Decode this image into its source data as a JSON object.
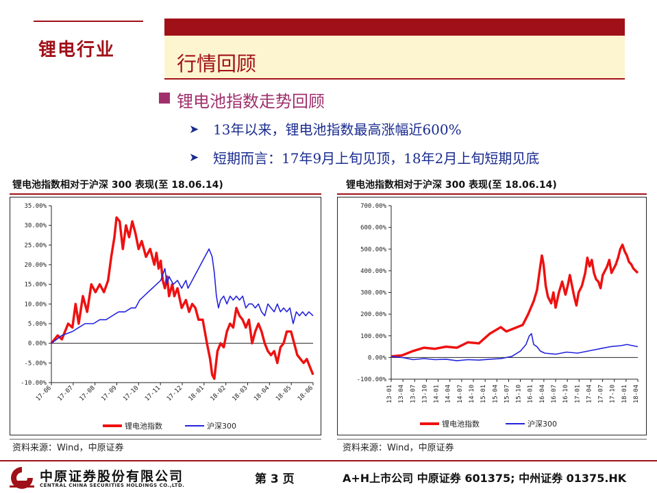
{
  "header": {
    "sector_label": "锂电行业",
    "section_title": "行情回顾"
  },
  "content": {
    "heading": "锂电池指数走势回顾",
    "points": [
      "13年以来，锂电池指数最高涨幅近600%",
      "短期而言：17年9月上旬见顶，18年2月上旬短期见底"
    ]
  },
  "charts": [
    {
      "title": "锂电池指数相对于沪深 300 表现(至 18.06.14)",
      "source": "资料来源：Wind，中原证券"
    },
    {
      "title": "锂电池指数相对于沪深 300 表现(至 18.06.14)",
      "source": "资料来源：Wind，中原证券"
    }
  ],
  "chart_data": [
    {
      "type": "line",
      "title": "锂电池指数相对于沪深 300 表现(至 18.06.14)",
      "colors": {
        "锂电池指数": "#ee1111",
        "沪深300": "#2222dd"
      },
      "y_ticks": [
        "35.00%",
        "30.00%",
        "25.00%",
        "20.00%",
        "15.00%",
        "10.00%",
        "5.00%",
        "0.00%",
        "-5.00%",
        "-10.00%"
      ],
      "ylim": [
        -10,
        35
      ],
      "x_ticks": [
        "17-06",
        "17-07",
        "17-08",
        "17-09",
        "17-10",
        "17-11",
        "17-12",
        "18-01",
        "18-02",
        "18-03",
        "18-04",
        "18-05",
        "18-06"
      ],
      "x_range": [
        0,
        12.45
      ],
      "legend_position": "bottom",
      "series": [
        {
          "name": "锂电池指数",
          "points": [
            [
              0,
              0
            ],
            [
              0.3,
              2
            ],
            [
              0.5,
              1
            ],
            [
              0.8,
              5
            ],
            [
              1.0,
              4
            ],
            [
              1.15,
              10
            ],
            [
              1.3,
              5
            ],
            [
              1.5,
              12
            ],
            [
              1.7,
              8
            ],
            [
              1.9,
              15
            ],
            [
              2.1,
              13
            ],
            [
              2.3,
              15
            ],
            [
              2.5,
              13
            ],
            [
              2.7,
              16
            ],
            [
              2.85,
              22
            ],
            [
              3.0,
              27
            ],
            [
              3.1,
              32
            ],
            [
              3.25,
              31
            ],
            [
              3.4,
              24
            ],
            [
              3.55,
              30
            ],
            [
              3.7,
              27
            ],
            [
              3.85,
              31
            ],
            [
              4.0,
              28
            ],
            [
              4.15,
              24
            ],
            [
              4.3,
              26
            ],
            [
              4.5,
              22
            ],
            [
              4.7,
              24
            ],
            [
              4.9,
              20
            ],
            [
              5.0,
              23
            ],
            [
              5.1,
              19
            ],
            [
              5.2,
              21
            ],
            [
              5.3,
              16
            ],
            [
              5.4,
              14
            ],
            [
              5.5,
              17
            ],
            [
              5.6,
              12
            ],
            [
              5.75,
              15
            ],
            [
              5.85,
              12
            ],
            [
              6.0,
              14
            ],
            [
              6.2,
              9
            ],
            [
              6.4,
              11
            ],
            [
              6.55,
              8
            ],
            [
              6.7,
              10
            ],
            [
              6.85,
              9
            ],
            [
              7.0,
              6
            ],
            [
              7.2,
              6
            ],
            [
              7.4,
              0
            ],
            [
              7.55,
              -4
            ],
            [
              7.65,
              -8
            ],
            [
              7.75,
              -9
            ],
            [
              7.9,
              -2
            ],
            [
              8.05,
              0
            ],
            [
              8.2,
              -1
            ],
            [
              8.35,
              3
            ],
            [
              8.5,
              5
            ],
            [
              8.65,
              4
            ],
            [
              8.8,
              9
            ],
            [
              8.95,
              7
            ],
            [
              9.1,
              6
            ],
            [
              9.25,
              4
            ],
            [
              9.4,
              6
            ],
            [
              9.55,
              0
            ],
            [
              9.7,
              3
            ],
            [
              9.85,
              5
            ],
            [
              10.0,
              3
            ],
            [
              10.15,
              0
            ],
            [
              10.3,
              -2
            ],
            [
              10.45,
              -3
            ],
            [
              10.6,
              -2
            ],
            [
              10.75,
              -5
            ],
            [
              10.9,
              -1
            ],
            [
              11.05,
              0
            ],
            [
              11.2,
              3
            ],
            [
              11.4,
              3
            ],
            [
              11.55,
              0
            ],
            [
              11.7,
              -3
            ],
            [
              11.85,
              -4
            ],
            [
              12.0,
              -5
            ],
            [
              12.15,
              -4
            ],
            [
              12.3,
              -6
            ],
            [
              12.45,
              -8
            ]
          ]
        },
        {
          "name": "沪深300",
          "points": [
            [
              0,
              0
            ],
            [
              0.5,
              2
            ],
            [
              1.0,
              3
            ],
            [
              1.3,
              4
            ],
            [
              1.6,
              5
            ],
            [
              2.0,
              5
            ],
            [
              2.3,
              6
            ],
            [
              2.6,
              6
            ],
            [
              2.9,
              7
            ],
            [
              3.2,
              8
            ],
            [
              3.5,
              8
            ],
            [
              3.8,
              9
            ],
            [
              4.0,
              9
            ],
            [
              4.2,
              11
            ],
            [
              4.4,
              12
            ],
            [
              4.6,
              13
            ],
            [
              4.8,
              14
            ],
            [
              5.0,
              15
            ],
            [
              5.2,
              16
            ],
            [
              5.4,
              19
            ],
            [
              5.5,
              15
            ],
            [
              5.6,
              17
            ],
            [
              5.8,
              15
            ],
            [
              6.0,
              16
            ],
            [
              6.2,
              14
            ],
            [
              6.4,
              16
            ],
            [
              6.5,
              14
            ],
            [
              6.6,
              15
            ],
            [
              6.8,
              17
            ],
            [
              7.0,
              19
            ],
            [
              7.2,
              21
            ],
            [
              7.4,
              23
            ],
            [
              7.5,
              24
            ],
            [
              7.65,
              22
            ],
            [
              7.75,
              18
            ],
            [
              7.85,
              12
            ],
            [
              7.95,
              9
            ],
            [
              8.05,
              11
            ],
            [
              8.2,
              12
            ],
            [
              8.35,
              10
            ],
            [
              8.5,
              12
            ],
            [
              8.65,
              11
            ],
            [
              8.8,
              12
            ],
            [
              8.95,
              11
            ],
            [
              9.1,
              12
            ],
            [
              9.25,
              9
            ],
            [
              9.4,
              10
            ],
            [
              9.55,
              10
            ],
            [
              9.7,
              9
            ],
            [
              9.85,
              10
            ],
            [
              10.0,
              8
            ],
            [
              10.15,
              7
            ],
            [
              10.3,
              10
            ],
            [
              10.45,
              9
            ],
            [
              10.6,
              8
            ],
            [
              10.75,
              10
            ],
            [
              10.9,
              8
            ],
            [
              11.05,
              9
            ],
            [
              11.2,
              8
            ],
            [
              11.35,
              9
            ],
            [
              11.5,
              5
            ],
            [
              11.65,
              8
            ],
            [
              11.8,
              7
            ],
            [
              11.95,
              8
            ],
            [
              12.1,
              7
            ],
            [
              12.25,
              8
            ],
            [
              12.45,
              7
            ]
          ]
        }
      ]
    },
    {
      "type": "line",
      "title": "锂电池指数相对于沪深 300 表现(至 18.06.14)",
      "colors": {
        "锂电池指数": "#ee1111",
        "沪深300": "#2222dd"
      },
      "y_ticks": [
        "700.00%",
        "600.00%",
        "500.00%",
        "400.00%",
        "300.00%",
        "200.00%",
        "100.00%",
        "0.00%",
        "-100.00%"
      ],
      "ylim": [
        -100,
        700
      ],
      "x_ticks": [
        "13-01",
        "13-04",
        "13-07",
        "13-10",
        "14-01",
        "14-04",
        "14-07",
        "14-10",
        "15-01",
        "15-04",
        "15-07",
        "15-10",
        "16-01",
        "16-04",
        "16-07",
        "16-10",
        "17-01",
        "17-04",
        "17-07",
        "17-10",
        "18-01",
        "18-04"
      ],
      "x_range": [
        0,
        22.5
      ],
      "legend_position": "bottom",
      "series": [
        {
          "name": "锂电池指数",
          "points": [
            [
              0,
              5
            ],
            [
              1,
              10
            ],
            [
              1.5,
              20
            ],
            [
              2,
              30
            ],
            [
              3,
              45
            ],
            [
              4,
              40
            ],
            [
              5,
              50
            ],
            [
              6,
              45
            ],
            [
              7,
              70
            ],
            [
              8,
              65
            ],
            [
              9,
              110
            ],
            [
              10,
              140
            ],
            [
              10.5,
              120
            ],
            [
              11,
              130
            ],
            [
              12,
              150
            ],
            [
              12.5,
              200
            ],
            [
              13,
              260
            ],
            [
              13.3,
              310
            ],
            [
              13.6,
              420
            ],
            [
              13.75,
              470
            ],
            [
              13.9,
              430
            ],
            [
              14.1,
              330
            ],
            [
              14.3,
              280
            ],
            [
              14.6,
              250
            ],
            [
              14.8,
              300
            ],
            [
              15,
              230
            ],
            [
              15.3,
              300
            ],
            [
              15.6,
              350
            ],
            [
              15.9,
              290
            ],
            [
              16.1,
              330
            ],
            [
              16.3,
              380
            ],
            [
              16.5,
              330
            ],
            [
              16.7,
              280
            ],
            [
              16.9,
              240
            ],
            [
              17.1,
              300
            ],
            [
              17.4,
              330
            ],
            [
              17.7,
              390
            ],
            [
              17.9,
              460
            ],
            [
              18.1,
              420
            ],
            [
              18.3,
              450
            ],
            [
              18.5,
              390
            ],
            [
              18.7,
              360
            ],
            [
              18.9,
              350
            ],
            [
              19.1,
              320
            ],
            [
              19.3,
              380
            ],
            [
              19.5,
              400
            ],
            [
              19.7,
              420
            ],
            [
              19.9,
              450
            ],
            [
              20.1,
              390
            ],
            [
              20.3,
              410
            ],
            [
              20.5,
              430
            ],
            [
              20.7,
              460
            ],
            [
              20.9,
              500
            ],
            [
              21.1,
              520
            ],
            [
              21.3,
              490
            ],
            [
              21.5,
              470
            ],
            [
              21.7,
              440
            ],
            [
              21.9,
              430
            ],
            [
              22.1,
              410
            ],
            [
              22.3,
              400
            ],
            [
              22.5,
              390
            ]
          ]
        },
        {
          "name": "沪深300",
          "points": [
            [
              0,
              5
            ],
            [
              1,
              0
            ],
            [
              2,
              -10
            ],
            [
              3,
              -5
            ],
            [
              4,
              -10
            ],
            [
              5,
              -8
            ],
            [
              6,
              -15
            ],
            [
              7,
              -10
            ],
            [
              8,
              -12
            ],
            [
              9,
              -8
            ],
            [
              10,
              -5
            ],
            [
              11,
              5
            ],
            [
              11.8,
              30
            ],
            [
              12.3,
              60
            ],
            [
              12.6,
              100
            ],
            [
              12.8,
              110
            ],
            [
              13,
              60
            ],
            [
              13.3,
              50
            ],
            [
              13.6,
              30
            ],
            [
              14,
              20
            ],
            [
              15,
              15
            ],
            [
              16,
              25
            ],
            [
              17,
              20
            ],
            [
              18,
              30
            ],
            [
              19,
              40
            ],
            [
              20,
              50
            ],
            [
              21,
              55
            ],
            [
              21.5,
              60
            ],
            [
              22,
              55
            ],
            [
              22.5,
              50
            ]
          ]
        }
      ]
    }
  ],
  "footer": {
    "company_cn": "中原证券股份有限公司",
    "company_en": "CENTRAL CHINA SECURITIES HOLDINGS CO.,LTD.",
    "page": "第 3 页",
    "listing": "A+H上市公司 中原证券 601375; 中州证券 01375.HK"
  }
}
